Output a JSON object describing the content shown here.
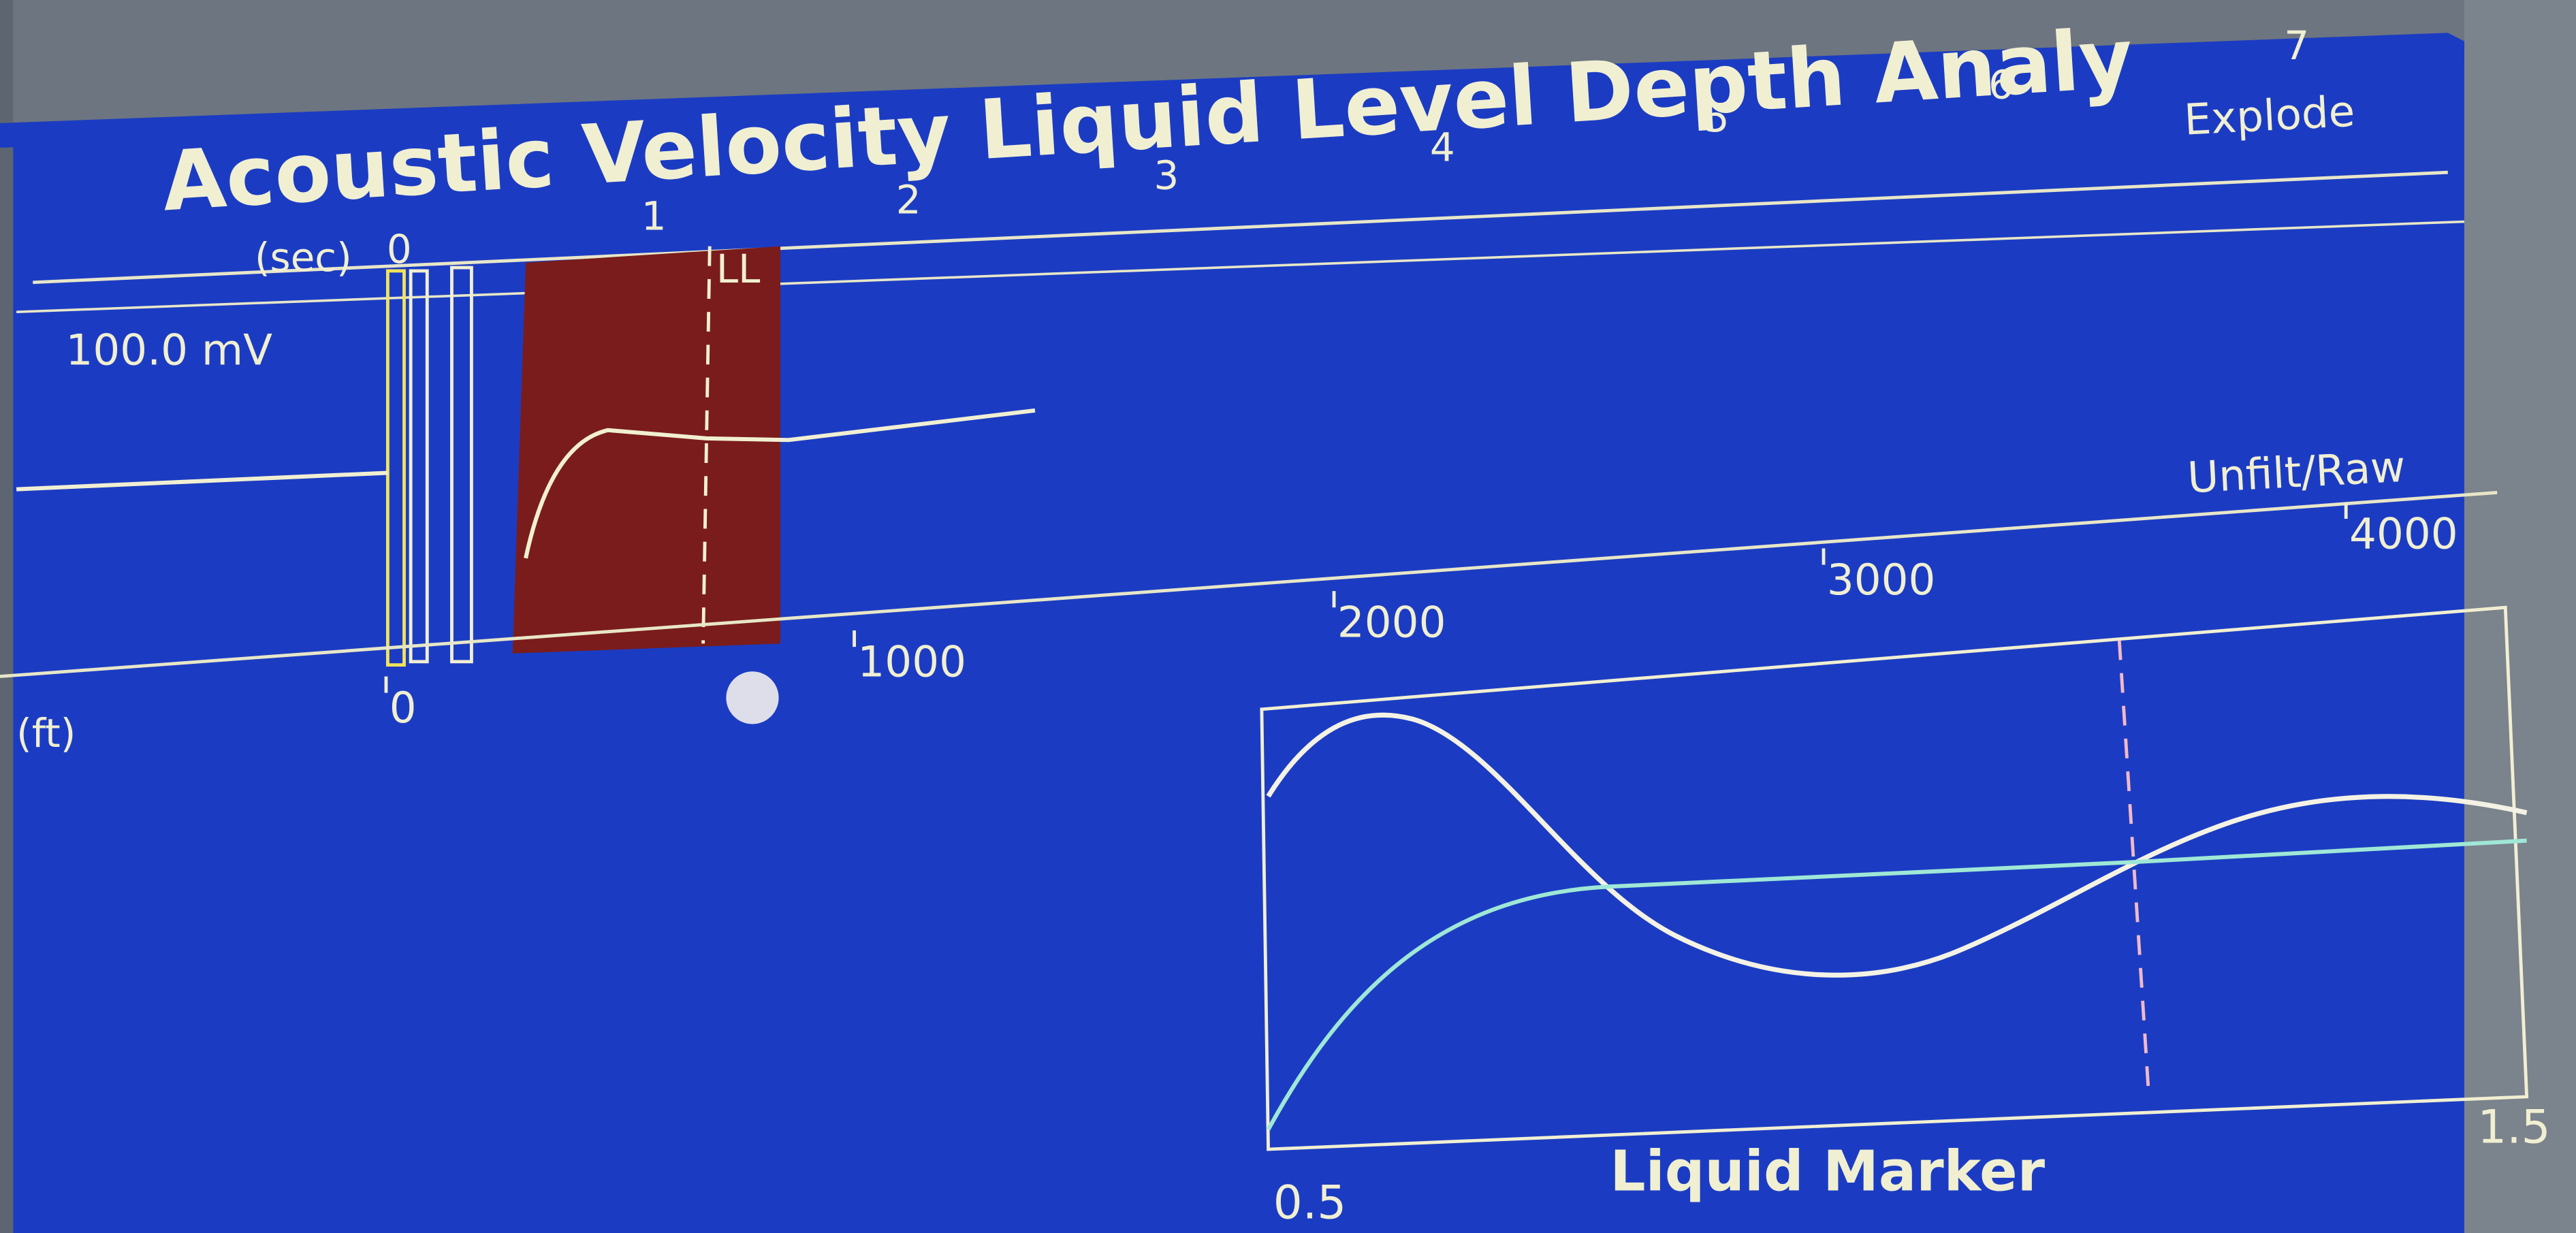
{
  "header": {
    "title": "Acoustic Velocity Liquid Level Depth Analy"
  },
  "time_axis": {
    "unit": "(sec)",
    "ticks": [
      0,
      1,
      2,
      3,
      4,
      5,
      6,
      7
    ]
  },
  "signal_panel": {
    "gain": "100.0 mV",
    "marker": "LL"
  },
  "buttons": {
    "explode": "Explode",
    "filter": "Unfilt/Raw"
  },
  "depth_axis": {
    "unit": "(ft)",
    "ticks": [
      0,
      1000,
      2000,
      3000,
      4000
    ]
  },
  "inset": {
    "title": "Liquid Marker",
    "x_start": 0.5,
    "x_end": 1.5
  }
}
